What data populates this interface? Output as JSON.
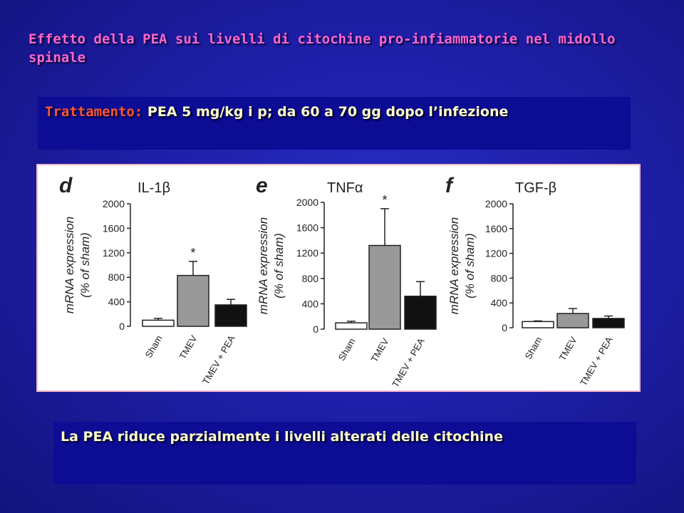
{
  "slide": {
    "title": "Effetto della PEA sui livelli di citochine pro-infiammatorie  nel midollo spinale",
    "treatment_label": "Trattamento:",
    "treatment_text": " PEA 5 mg/kg  i p; da 60 a 70 gg dopo l’infezione",
    "conclusion": "La PEA  riduce parzialmente  i livelli alterati delle citochine"
  },
  "colors": {
    "background": "#1e1fa8",
    "title": "#ff66cc",
    "box_fill": "#0c0c94",
    "box_text": "#ffffcc",
    "treatment_label": "#ff5533",
    "bar_sham": "#ffffff",
    "bar_tmev": "#999999",
    "bar_tmev_pea": "#111111"
  },
  "chart_data": [
    {
      "type": "bar",
      "panel": "d",
      "title": "IL-1β",
      "ylabel": "mRNA expression\n(% of sham)",
      "categories": [
        "Sham",
        "TMEV",
        "TMEV + PEA"
      ],
      "values": [
        100,
        830,
        350
      ],
      "errors": [
        30,
        230,
        90
      ],
      "annotations": [
        "",
        "*",
        ""
      ],
      "ylim": [
        0,
        2000
      ],
      "yticks": [
        0,
        400,
        800,
        1200,
        1600,
        2000
      ]
    },
    {
      "type": "bar",
      "panel": "e",
      "title": "TNFα",
      "ylabel": "mRNA expression\n(% of sham)",
      "categories": [
        "Sham",
        "TMEV",
        "TMEV + PEA"
      ],
      "values": [
        100,
        1320,
        520
      ],
      "errors": [
        25,
        580,
        230
      ],
      "annotations": [
        "",
        "*",
        ""
      ],
      "ylim": [
        0,
        2000
      ],
      "yticks": [
        0,
        400,
        800,
        1200,
        1600,
        2000
      ]
    },
    {
      "type": "bar",
      "panel": "f",
      "title": "TGF-β",
      "ylabel": "mRNA expression\n(% of sham)",
      "categories": [
        "Sham",
        "TMEV",
        "TMEV + PEA"
      ],
      "values": [
        100,
        230,
        150
      ],
      "errors": [
        10,
        80,
        40
      ],
      "annotations": [
        "",
        "",
        ""
      ],
      "ylim": [
        0,
        2000
      ],
      "yticks": [
        0,
        400,
        800,
        1200,
        1600,
        2000
      ]
    }
  ]
}
